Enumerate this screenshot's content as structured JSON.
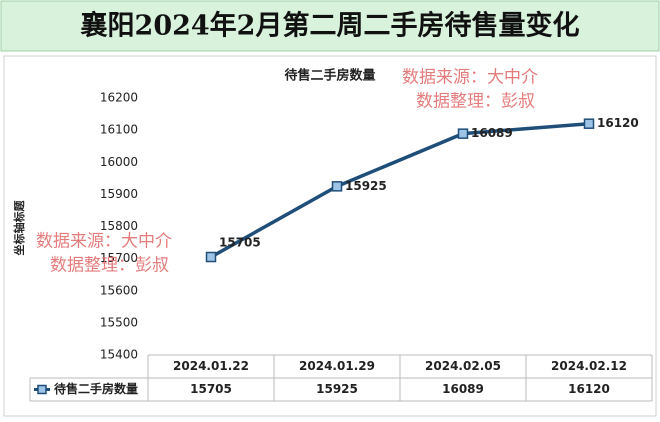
{
  "header": {
    "title": "襄阳2024年2月第二周二手房待售量变化"
  },
  "chart_data": {
    "type": "line",
    "title": "待售二手房数量",
    "y_label": "坐标轴标题",
    "categories": [
      "2024.01.22",
      "2024.01.29",
      "2024.02.05",
      "2024.02.12"
    ],
    "series": [
      {
        "name": "待售二手房数量",
        "color": "#1f4e79",
        "values": [
          15705,
          15925,
          16089,
          16120
        ]
      }
    ],
    "ylim": [
      15400,
      16200
    ],
    "yticks": [
      15400,
      15500,
      15600,
      15700,
      15800,
      15900,
      16000,
      16100,
      16200
    ],
    "grid": false,
    "data_table": true
  },
  "watermarks": [
    [
      "数据来源：大中介",
      "数据整理：彭叔"
    ],
    [
      "数据来源：大中介",
      "数据整理：彭叔"
    ]
  ]
}
